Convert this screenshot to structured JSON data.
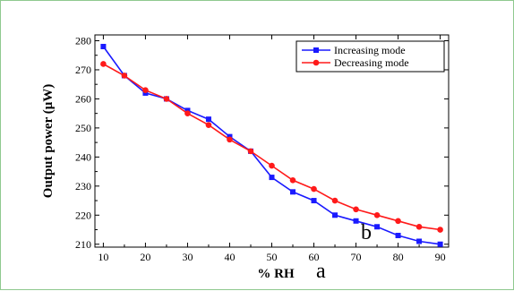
{
  "chart_data": {
    "type": "line",
    "xlabel": "% RH",
    "ylabel": "Output power (μW)",
    "xlim": [
      8,
      92
    ],
    "ylim": [
      209,
      282
    ],
    "x_ticks": [
      10,
      20,
      30,
      40,
      50,
      60,
      70,
      80,
      90
    ],
    "y_ticks": [
      210,
      220,
      230,
      240,
      250,
      260,
      270,
      280
    ],
    "x": [
      10,
      15,
      20,
      25,
      30,
      35,
      40,
      45,
      50,
      55,
      60,
      65,
      70,
      75,
      80,
      85,
      90
    ],
    "series": [
      {
        "name": "Increasing mode",
        "color": "#1a1aff",
        "marker": "square",
        "values": [
          278,
          268,
          262,
          260,
          256,
          253,
          247,
          242,
          233,
          228,
          225,
          220,
          218,
          216,
          213,
          211,
          210
        ]
      },
      {
        "name": "Decreasing mode",
        "color": "#ff1a1a",
        "marker": "circle",
        "values": [
          272,
          268,
          263,
          260,
          255,
          251,
          246,
          242,
          237,
          232,
          229,
          225,
          222,
          220,
          218,
          216,
          215
        ]
      }
    ],
    "legend_position": "top-right",
    "grid": false,
    "annotations": [
      "b",
      "a"
    ]
  }
}
